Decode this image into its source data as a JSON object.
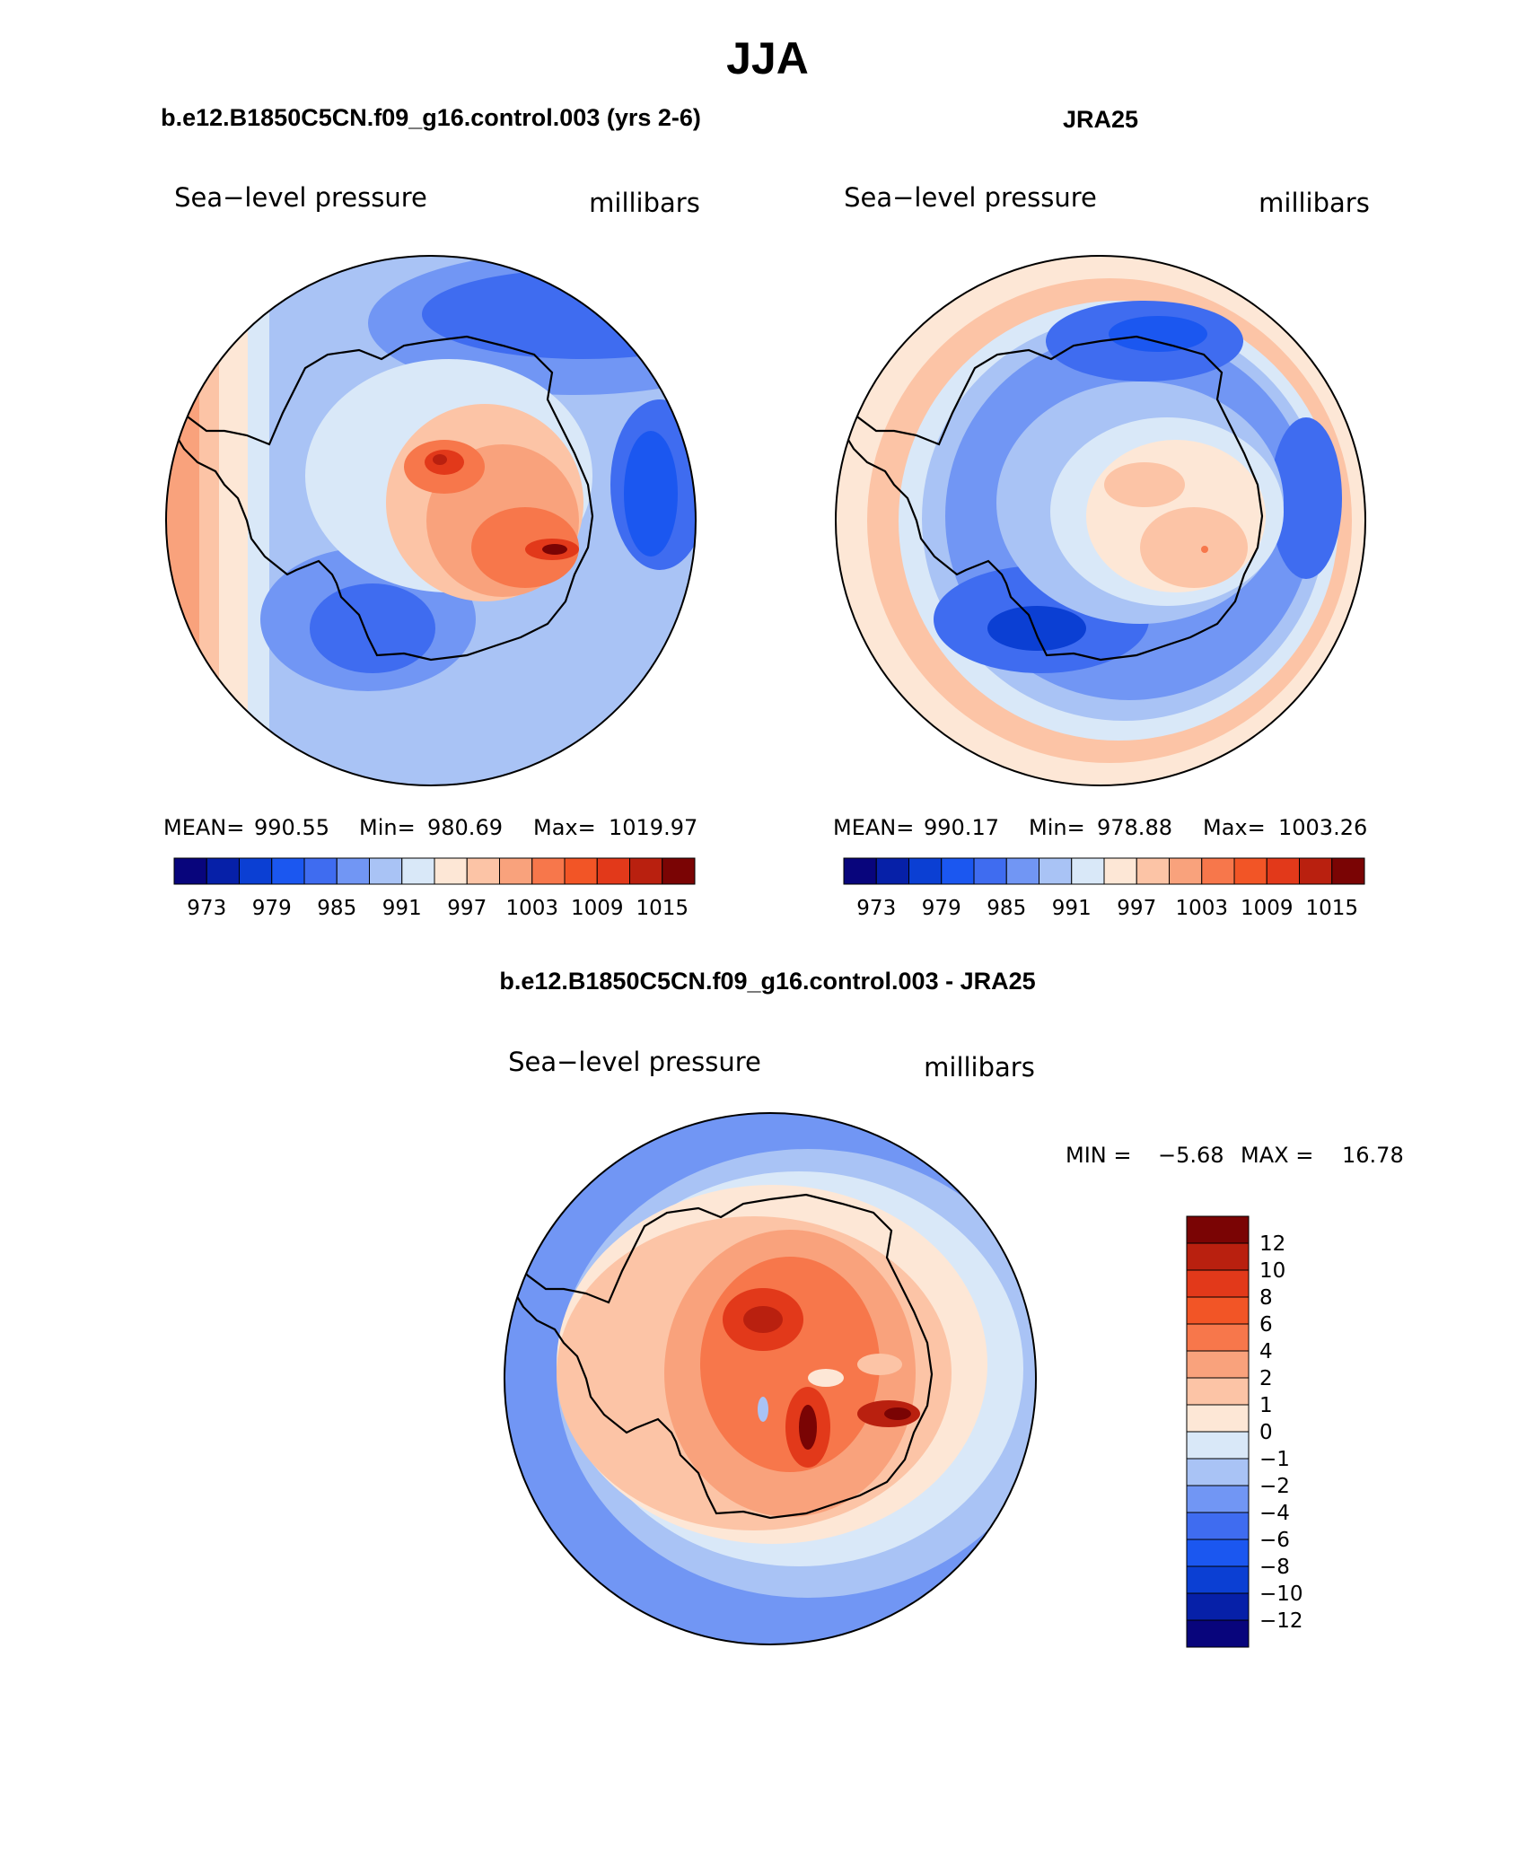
{
  "page_title": "JJA",
  "palette": [
    "#08057c",
    "#0620a8",
    "#0b3fd3",
    "#1b57f0",
    "#3f6cf0",
    "#7196f4",
    "#a9c3f5",
    "#d9e8f8",
    "#fde7d6",
    "#fcc4a6",
    "#f9a27c",
    "#f7774b",
    "#f25526",
    "#e2391a",
    "#b9200f",
    "#7a0404"
  ],
  "coast_color": "#000000",
  "panels": [
    {
      "title": "b.e12.B1850C5CN.f09_g16.control.003 (yrs 2-6)",
      "left_label": "Sea−level pressure",
      "right_label": "millibars",
      "stats": {
        "mean_label": "MEAN=",
        "mean": "990.55",
        "min_label": "Min=",
        "min": "980.69",
        "max_label": "Max=",
        "max": "1019.97"
      },
      "colorbar_ticks": [
        "973",
        "979",
        "985",
        "991",
        "997",
        "1003",
        "1009",
        "1015"
      ],
      "colorbar_levels": [
        973,
        976,
        979,
        982,
        985,
        988,
        991,
        994,
        997,
        1000,
        1003,
        1006,
        1009,
        1012,
        1015
      ]
    },
    {
      "title": "JRA25",
      "left_label": "Sea−level pressure",
      "right_label": "millibars",
      "stats": {
        "mean_label": "MEAN=",
        "mean": "990.17",
        "min_label": "Min=",
        "min": "978.88",
        "max_label": "Max=",
        "max": "1003.26"
      },
      "colorbar_ticks": [
        "973",
        "979",
        "985",
        "991",
        "997",
        "1003",
        "1009",
        "1015"
      ],
      "colorbar_levels": [
        973,
        976,
        979,
        982,
        985,
        988,
        991,
        994,
        997,
        1000,
        1003,
        1006,
        1009,
        1012,
        1015
      ]
    },
    {
      "title": "b.e12.B1850C5CN.f09_g16.control.003 - JRA25",
      "left_label": "Sea−level pressure",
      "right_label": "millibars",
      "stats": {
        "min_label": "MIN =",
        "min": "−5.68",
        "max_label": "MAX =",
        "max": "16.78"
      },
      "colorbar_ticks": [
        "12",
        "10",
        "8",
        "6",
        "4",
        "2",
        "1",
        "0",
        "−1",
        "−2",
        "−4",
        "−6",
        "−8",
        "−10",
        "−12"
      ],
      "colorbar_levels": [
        -12,
        -10,
        -8,
        -6,
        -4,
        -2,
        -1,
        0,
        1,
        2,
        4,
        6,
        8,
        10,
        12
      ]
    }
  ]
}
